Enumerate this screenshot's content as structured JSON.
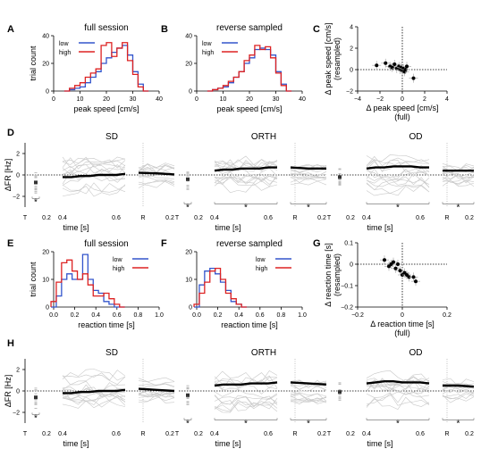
{
  "panel_letters": [
    "A",
    "B",
    "C",
    "D",
    "E",
    "F",
    "G",
    "H"
  ],
  "chart_data": [
    {
      "id": "A",
      "type": "line",
      "title": "full session",
      "xlabel": "peak speed [cm/s]",
      "ylabel": "trial count",
      "xlim": [
        0,
        40
      ],
      "ylim": [
        0,
        40
      ],
      "xticks": [
        "0",
        "10",
        "20",
        "30",
        "40"
      ],
      "yticks": [
        "0",
        "20",
        "40"
      ],
      "legend": "top-left",
      "series": [
        {
          "name": "low",
          "color": "#3355cc",
          "x": [
            5,
            7,
            9,
            11,
            13,
            15,
            17,
            19,
            21,
            23,
            25,
            27,
            29,
            31,
            33,
            35
          ],
          "values": [
            0,
            1,
            2,
            3,
            6,
            10,
            14,
            20,
            24,
            28,
            31,
            33,
            26,
            14,
            5,
            0
          ]
        },
        {
          "name": "high",
          "color": "#dd2222",
          "x": [
            5,
            7,
            9,
            11,
            13,
            15,
            17,
            19,
            21,
            23,
            25,
            27,
            29,
            31,
            33,
            35
          ],
          "values": [
            0,
            2,
            4,
            6,
            10,
            13,
            16,
            33,
            35,
            25,
            31,
            35,
            22,
            12,
            3,
            0
          ]
        }
      ]
    },
    {
      "id": "B",
      "type": "line",
      "title": "reverse sampled",
      "xlabel": "peak speed [cm/s]",
      "xlim": [
        0,
        40
      ],
      "ylim": [
        0,
        40
      ],
      "xticks": [
        "0",
        "10",
        "20",
        "30",
        "40"
      ],
      "yticks": [
        "0",
        "20",
        "40"
      ],
      "legend": "top-left",
      "series": [
        {
          "name": "low",
          "color": "#3355cc",
          "x": [
            5,
            7,
            9,
            11,
            13,
            15,
            17,
            19,
            21,
            23,
            25,
            27,
            29,
            31,
            33,
            35
          ],
          "values": [
            0,
            1,
            2,
            3,
            6,
            10,
            14,
            20,
            24,
            30,
            31,
            30,
            26,
            14,
            5,
            0
          ]
        },
        {
          "name": "high",
          "color": "#dd2222",
          "x": [
            5,
            7,
            9,
            11,
            13,
            15,
            17,
            19,
            21,
            23,
            25,
            27,
            29,
            31,
            33,
            35
          ],
          "values": [
            0,
            1,
            2,
            4,
            7,
            10,
            14,
            22,
            26,
            33,
            30,
            32,
            24,
            13,
            4,
            0
          ]
        }
      ]
    },
    {
      "id": "C",
      "type": "scatter",
      "xlabel": "Δ peak speed [cm/s]",
      "xlabel2": "(full)",
      "ylabel": "Δ peak speed [cm/s]",
      "ylabel2": "(resampled)",
      "xlim": [
        -4,
        4
      ],
      "ylim": [
        -2,
        4
      ],
      "xticks": [
        "−4",
        "−2",
        "0",
        "2",
        "4"
      ],
      "yticks": [
        "−2",
        "0",
        "2",
        "4"
      ],
      "x": [
        -2.3,
        -1.5,
        -1.1,
        -0.9,
        -0.7,
        -0.5,
        -0.3,
        -0.2,
        -0.1,
        0,
        0.1,
        0.2,
        0.3,
        0.4,
        1.0
      ],
      "values": [
        0.4,
        0.6,
        0.3,
        0.2,
        0.5,
        0.1,
        0.3,
        0.0,
        0.2,
        -0.1,
        0.1,
        -0.2,
        0.0,
        0.3,
        -0.8
      ]
    },
    {
      "id": "D",
      "type": "line",
      "ylabel": "ΔFR [Hz]",
      "xlabel": "time [s]",
      "yticks": [
        "−2",
        "0",
        "2"
      ],
      "subpanels": [
        {
          "title": "SD",
          "offset": -0.7,
          "mean": [
            -0.2,
            -0.2,
            -0.1,
            -0.1,
            0.0,
            0.0,
            0.0,
            0.1
          ],
          "resp": [
            0.2,
            0.15,
            0.05
          ],
          "stars": [
            "*"
          ]
        },
        {
          "title": "ORTH",
          "offset": -0.4,
          "mean": [
            0.4,
            0.5,
            0.5,
            0.6,
            0.6,
            0.6,
            0.7,
            0.7
          ],
          "resp": [
            0.7,
            0.6,
            0.6
          ],
          "stars": [
            "*",
            "*",
            "*"
          ]
        },
        {
          "title": "OD",
          "offset": -0.2,
          "mean": [
            0.6,
            0.7,
            0.7,
            0.8,
            0.8,
            0.8,
            0.7,
            0.7
          ],
          "resp": [
            0.4,
            0.4,
            0.4
          ],
          "stars": [
            "*",
            "*"
          ]
        }
      ]
    },
    {
      "id": "E",
      "type": "line",
      "title": "full session",
      "xlabel": "reaction time [s]",
      "ylabel": "trial count",
      "xlim": [
        0,
        1
      ],
      "ylim": [
        0,
        20
      ],
      "xticks": [
        "0.0",
        "0.2",
        "0.4",
        "0.6",
        "0.8",
        "1.0"
      ],
      "yticks": [
        "0",
        "10",
        "20"
      ],
      "legend": "top-right",
      "series": [
        {
          "name": "low",
          "color": "#3355cc",
          "x": [
            0.0,
            0.05,
            0.1,
            0.15,
            0.2,
            0.25,
            0.3,
            0.35,
            0.4,
            0.45,
            0.5,
            0.55,
            0.6,
            0.65
          ],
          "values": [
            0,
            4,
            10,
            12,
            10,
            10,
            19,
            10,
            6,
            5,
            2,
            1,
            0,
            0
          ]
        },
        {
          "name": "high",
          "color": "#dd2222",
          "x": [
            0.0,
            0.05,
            0.1,
            0.15,
            0.2,
            0.25,
            0.3,
            0.35,
            0.4,
            0.45,
            0.5,
            0.55,
            0.6,
            0.65
          ],
          "values": [
            2,
            9,
            16,
            17,
            13,
            10,
            12,
            8,
            4,
            4,
            5,
            3,
            1,
            0
          ]
        }
      ]
    },
    {
      "id": "F",
      "type": "line",
      "title": "reverse sampled",
      "xlabel": "reaction time [s]",
      "xlim": [
        0,
        1
      ],
      "ylim": [
        0,
        20
      ],
      "xticks": [
        "0.0",
        "0.2",
        "0.4",
        "0.6",
        "0.8",
        "1.0"
      ],
      "yticks": [
        "0",
        "10",
        "20"
      ],
      "legend": "top-right",
      "series": [
        {
          "name": "low",
          "color": "#3355cc",
          "x": [
            0.0,
            0.05,
            0.1,
            0.15,
            0.2,
            0.25,
            0.3,
            0.35,
            0.4,
            0.45
          ],
          "values": [
            0,
            8,
            13,
            14,
            12,
            9,
            6,
            2,
            1,
            0
          ]
        },
        {
          "name": "high",
          "color": "#dd2222",
          "x": [
            0.0,
            0.05,
            0.1,
            0.15,
            0.2,
            0.25,
            0.3,
            0.35,
            0.4,
            0.45
          ],
          "values": [
            1,
            5,
            9,
            13,
            14,
            10,
            5,
            3,
            1,
            0
          ]
        }
      ]
    },
    {
      "id": "G",
      "type": "scatter",
      "xlabel": "Δ reaction time [s]",
      "xlabel2": "(full)",
      "ylabel": "Δ reaction time [s]",
      "ylabel2": "(resampled)",
      "xlim": [
        -0.2,
        0.2
      ],
      "ylim": [
        -0.2,
        0.1
      ],
      "xticks": [
        "−0.2",
        "0",
        "0.2"
      ],
      "yticks": [
        "−0.2",
        "−0.1",
        "0",
        "0.1"
      ],
      "x": [
        -0.08,
        -0.06,
        -0.05,
        -0.04,
        -0.03,
        -0.02,
        -0.01,
        0.0,
        0.01,
        0.02,
        0.03,
        0.05,
        0.06
      ],
      "values": [
        0.02,
        -0.01,
        0.0,
        0.01,
        -0.02,
        0.0,
        -0.03,
        -0.05,
        -0.04,
        -0.05,
        -0.06,
        -0.06,
        -0.08
      ]
    },
    {
      "id": "H",
      "type": "line",
      "ylabel": "ΔFR [Hz]",
      "xlabel": "time [s]",
      "yticks": [
        "−2",
        "0",
        "2"
      ],
      "subpanels": [
        {
          "title": "SD",
          "offset": -0.6,
          "mean": [
            -0.2,
            -0.2,
            -0.1,
            -0.1,
            0.0,
            0.0,
            0.0,
            0.1
          ],
          "resp": [
            0.2,
            0.1,
            0.0
          ],
          "stars": [
            "*"
          ]
        },
        {
          "title": "ORTH",
          "offset": -0.4,
          "mean": [
            0.5,
            0.6,
            0.6,
            0.6,
            0.7,
            0.7,
            0.7,
            0.8
          ],
          "resp": [
            0.8,
            0.7,
            0.6
          ],
          "stars": [
            "*",
            "*",
            "*"
          ]
        },
        {
          "title": "OD",
          "offset": -0.1,
          "mean": [
            0.7,
            0.8,
            0.9,
            0.9,
            0.8,
            0.8,
            0.8,
            0.7
          ],
          "resp": [
            0.5,
            0.5,
            0.4
          ],
          "stars": [
            "*",
            "*"
          ]
        }
      ]
    }
  ],
  "raster_ticks": {
    "t_label": "T",
    "t_tick": "0.2",
    "main": [
      "0.4",
      "0.6"
    ],
    "r_label": "R",
    "r_tick": "0.2"
  }
}
